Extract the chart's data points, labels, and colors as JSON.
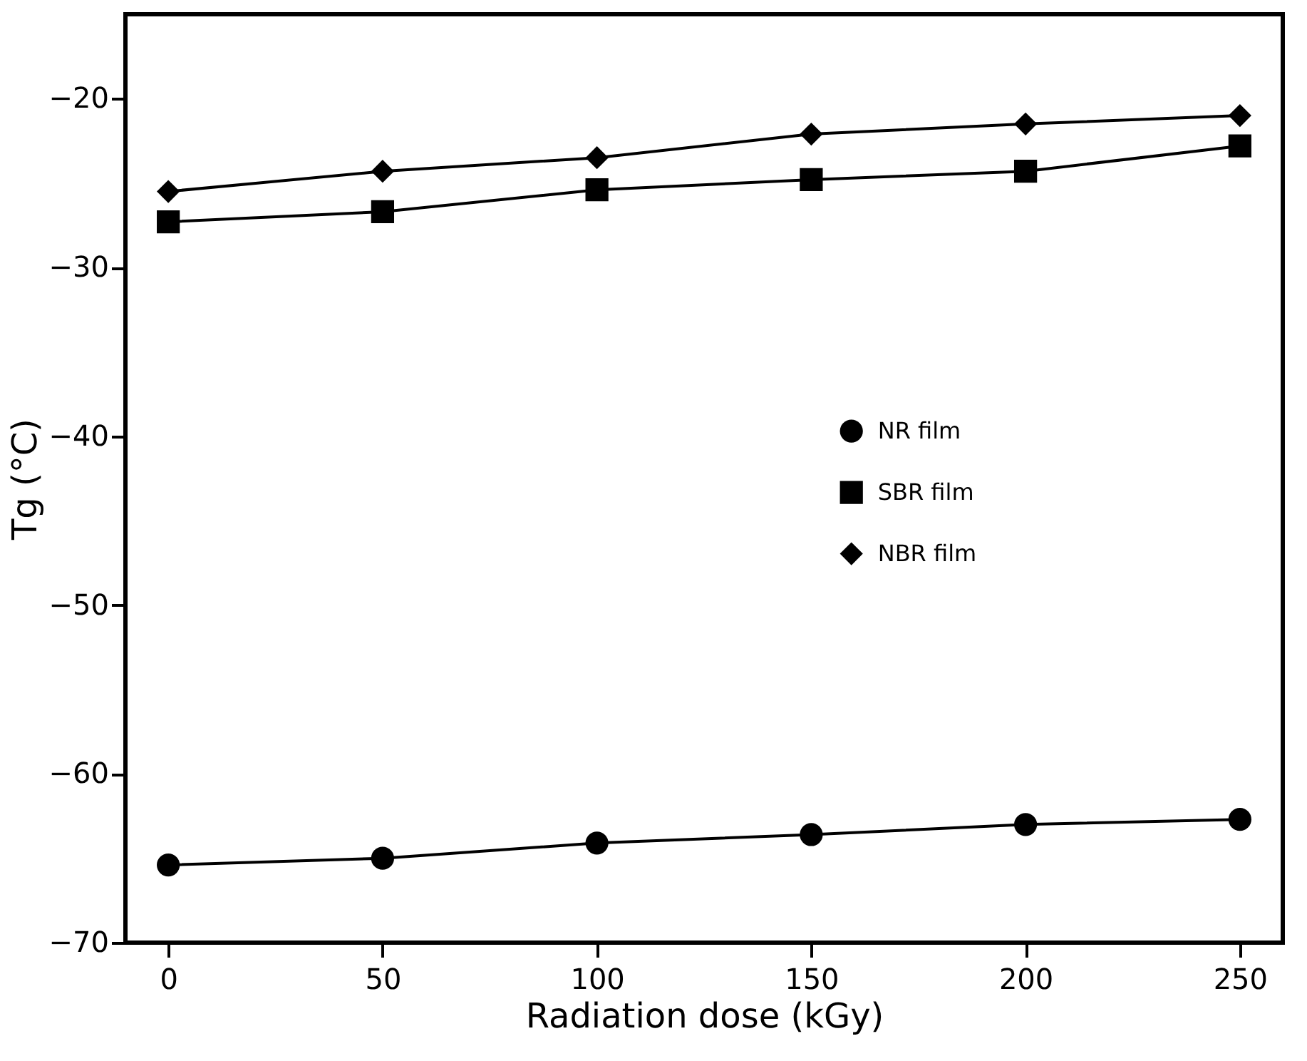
{
  "chart_data": {
    "type": "line",
    "xlabel": "Radiation dose (kGy)",
    "ylabel": "Tg (°C)",
    "x": [
      0,
      50,
      100,
      150,
      200,
      250
    ],
    "series": [
      {
        "name": "NR film",
        "color": "#000000",
        "marker": "circle",
        "values": [
          -65.4,
          -65.0,
          -64.1,
          -63.6,
          -63.0,
          -62.7
        ]
      },
      {
        "name": "SBR film",
        "color": "#000000",
        "marker": "square",
        "values": [
          -27.3,
          -26.7,
          -25.4,
          -24.8,
          -24.3,
          -22.8
        ]
      },
      {
        "name": "NBR film",
        "color": "#000000",
        "marker": "diamond",
        "values": [
          -25.5,
          -24.3,
          -23.5,
          -22.1,
          -21.5,
          -21.0
        ]
      }
    ],
    "xlim": [
      -10,
      260
    ],
    "ylim": [
      -70,
      -15
    ],
    "xticks": [
      0,
      50,
      100,
      150,
      200,
      250
    ],
    "yticks": [
      -70,
      -60,
      -50,
      -40,
      -30,
      -20
    ],
    "grid": false,
    "legend": "right",
    "line_style": "solid"
  }
}
